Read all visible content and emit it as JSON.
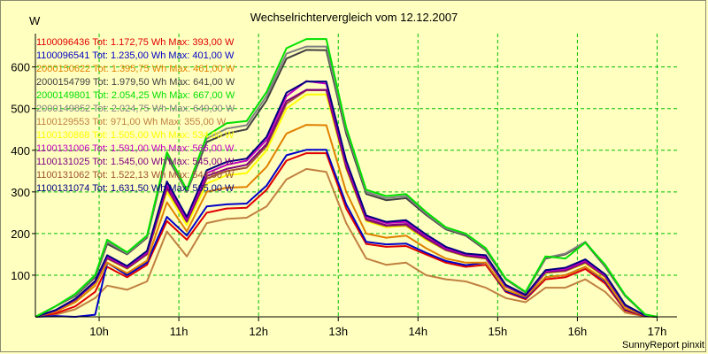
{
  "chart_data": {
    "type": "line",
    "title": "Wechselrichtervergleich vom 12.12.2007",
    "ylabel": "W",
    "credit": "SunnyReport pinxit",
    "ylim": [
      0,
      680
    ],
    "yticks": [
      100,
      200,
      300,
      400,
      500,
      600
    ],
    "xlim": [
      9.2,
      17.25
    ],
    "xticks": [
      10,
      11,
      12,
      13,
      14,
      15,
      16,
      17
    ],
    "xtick_labels": [
      "10h",
      "11h",
      "12h",
      "13h",
      "14h",
      "15h",
      "16h",
      "17h"
    ],
    "grid": true,
    "legend_position": "top-left",
    "x": [
      9.2,
      9.45,
      9.7,
      9.95,
      10.1,
      10.35,
      10.6,
      10.85,
      11.1,
      11.35,
      11.6,
      11.85,
      12.1,
      12.35,
      12.6,
      12.85,
      13.1,
      13.35,
      13.6,
      13.85,
      14.1,
      14.35,
      14.6,
      14.85,
      15.1,
      15.35,
      15.6,
      15.85,
      16.1,
      16.35,
      16.6,
      16.85,
      17.0
    ],
    "series": [
      {
        "name": "1100096436",
        "legend": "1100096436 Tot: 1.172,75 Wh Max: 393,00 W",
        "color": "#e00000",
        "values": [
          0,
          8,
          25,
          60,
          120,
          95,
          125,
          230,
          185,
          250,
          260,
          262,
          305,
          375,
          393,
          393,
          260,
          175,
          168,
          170,
          150,
          130,
          120,
          125,
          60,
          42,
          90,
          95,
          115,
          80,
          15,
          2,
          0
        ]
      },
      {
        "name": "1100096541",
        "legend": "1100096541 Tot: 1.235,00 Wh Max: 401,00 W",
        "color": "#0000c8",
        "values": [
          0,
          2,
          0,
          5,
          130,
          100,
          130,
          240,
          195,
          265,
          270,
          272,
          315,
          388,
          401,
          401,
          270,
          180,
          174,
          176,
          154,
          134,
          124,
          130,
          62,
          45,
          95,
          100,
          120,
          85,
          18,
          3,
          0
        ]
      },
      {
        "name": "2000150622",
        "legend": "2000150622 Tot: 1.395,75 Wh Max: 461,00 W",
        "color": "#e08000",
        "values": [
          0,
          12,
          35,
          75,
          130,
          105,
          135,
          275,
          205,
          300,
          310,
          312,
          360,
          440,
          461,
          460,
          300,
          200,
          190,
          195,
          165,
          140,
          130,
          130,
          65,
          48,
          95,
          100,
          120,
          88,
          20,
          3,
          0
        ]
      },
      {
        "name": "2000154799",
        "legend": "2000154799 Tot: 1.979,50 Wh Max: 641,00 W",
        "color": "#404040",
        "values": [
          0,
          25,
          50,
          95,
          175,
          150,
          190,
          385,
          300,
          420,
          440,
          450,
          520,
          620,
          641,
          640,
          440,
          295,
          280,
          285,
          245,
          210,
          195,
          160,
          90,
          58,
          140,
          150,
          178,
          120,
          50,
          5,
          0
        ]
      },
      {
        "name": "2000149801",
        "legend": "2000149801 Tot: 2.054,25 Wh Max: 667,00 W",
        "color": "#00e000",
        "values": [
          0,
          25,
          55,
          100,
          185,
          155,
          195,
          395,
          305,
          435,
          465,
          470,
          540,
          645,
          667,
          667,
          455,
          305,
          290,
          295,
          252,
          215,
          200,
          165,
          92,
          60,
          145,
          140,
          178,
          125,
          52,
          6,
          0
        ]
      },
      {
        "name": "2000149852",
        "legend": "2000149852 Tot: 2.024,75 Wh Max: 649,00 W",
        "color": "#808080",
        "values": [
          0,
          25,
          52,
          98,
          180,
          152,
          192,
          390,
          302,
          428,
          452,
          460,
          530,
          632,
          649,
          649,
          448,
          300,
          285,
          290,
          248,
          212,
          198,
          162,
          91,
          59,
          142,
          152,
          180,
          122,
          51,
          5,
          0
        ]
      },
      {
        "name": "1100129553",
        "legend": "1100129553 Tot: 971,00 Wh Max: 355,00 W",
        "color": "#c08040",
        "values": [
          0,
          5,
          18,
          45,
          75,
          65,
          85,
          205,
          145,
          225,
          235,
          238,
          265,
          330,
          355,
          348,
          225,
          140,
          125,
          130,
          100,
          90,
          85,
          70,
          45,
          35,
          70,
          70,
          90,
          60,
          10,
          1,
          0
        ]
      },
      {
        "name": "1100130868",
        "legend": "1100130868 Tot: 1.505,00 Wh Max: 534,00 W",
        "color": "#ffff00",
        "values": [
          0,
          15,
          40,
          80,
          140,
          115,
          150,
          300,
          220,
          320,
          340,
          345,
          400,
          500,
          534,
          534,
          355,
          230,
          215,
          218,
          185,
          160,
          145,
          140,
          72,
          50,
          105,
          110,
          128,
          95,
          25,
          3,
          0
        ]
      },
      {
        "name": "1100131006",
        "legend": "1100131006 Tot: 1.591,00 Wh Max: 566,00 W",
        "color": "#c000c0",
        "values": [
          0,
          15,
          42,
          85,
          145,
          120,
          155,
          320,
          235,
          345,
          365,
          375,
          425,
          530,
          566,
          560,
          370,
          240,
          225,
          228,
          195,
          165,
          150,
          145,
          75,
          52,
          110,
          115,
          135,
          100,
          28,
          3,
          0
        ]
      },
      {
        "name": "1100131025",
        "legend": "1100131025 Tot: 1.545,00 Wh Max: 545,00 W",
        "color": "#800080",
        "values": [
          0,
          15,
          41,
          83,
          142,
          118,
          152,
          312,
          230,
          338,
          355,
          365,
          415,
          518,
          545,
          545,
          362,
          235,
          220,
          223,
          190,
          162,
          148,
          142,
          74,
          51,
          108,
          112,
          132,
          98,
          27,
          3,
          0
        ]
      },
      {
        "name": "1100131062",
        "legend": "1100131062 Tot: 1.522,13 Wh Max: 544,00 W",
        "color": "#a05030",
        "values": [
          0,
          15,
          40,
          82,
          140,
          116,
          150,
          308,
          228,
          332,
          350,
          358,
          410,
          512,
          544,
          544,
          358,
          232,
          218,
          220,
          188,
          160,
          146,
          140,
          73,
          50,
          106,
          110,
          130,
          96,
          26,
          3,
          0
        ]
      },
      {
        "name": "1100131074",
        "legend": "1100131074 Tot: 1.631,50 Wh Max: 565,00 W",
        "color": "#000080",
        "values": [
          0,
          16,
          43,
          86,
          148,
          122,
          158,
          325,
          240,
          352,
          372,
          380,
          432,
          538,
          565,
          565,
          375,
          243,
          228,
          232,
          198,
          168,
          152,
          148,
          77,
          53,
          112,
          118,
          138,
          102,
          29,
          3,
          0
        ]
      }
    ]
  }
}
